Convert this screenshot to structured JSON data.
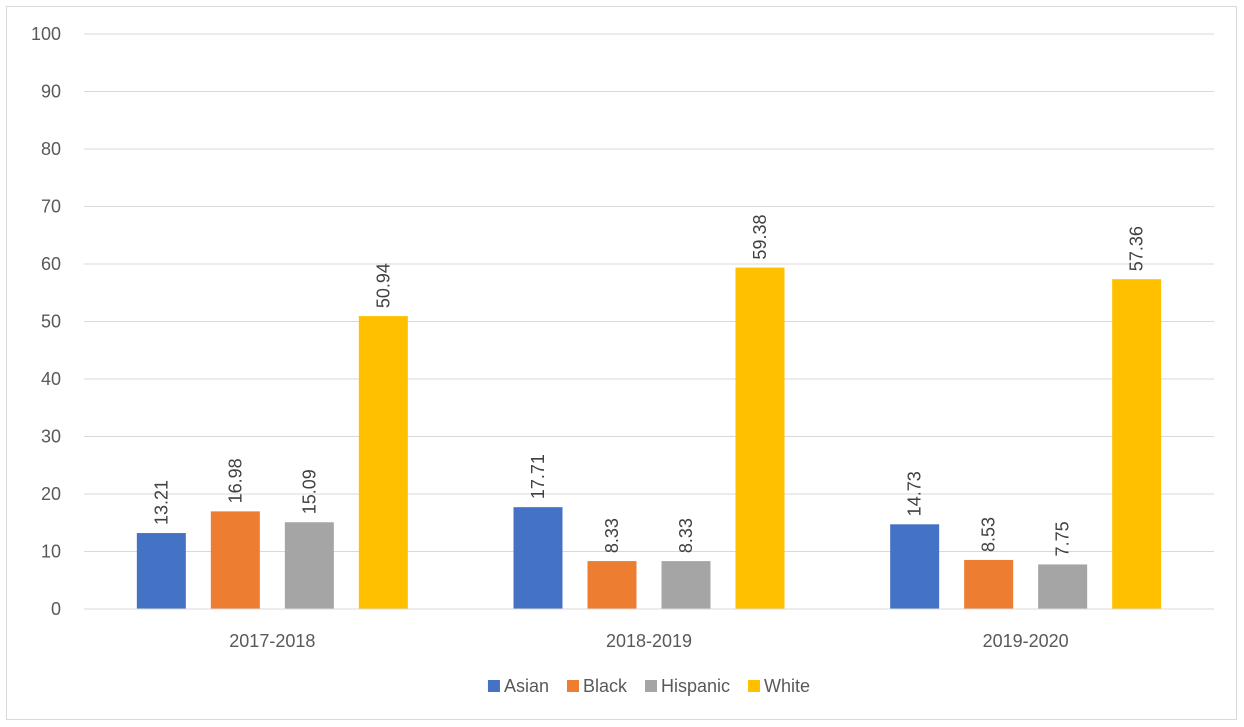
{
  "chart_data": {
    "type": "bar",
    "title": "",
    "xlabel": "",
    "ylabel": "",
    "categories": [
      "2017-2018",
      "2018-2019",
      "2019-2020"
    ],
    "ylim": [
      0,
      100
    ],
    "yticks": [
      0,
      10,
      20,
      30,
      40,
      50,
      60,
      70,
      80,
      90,
      100
    ],
    "grid": true,
    "legend_position": "bottom",
    "series": [
      {
        "name": "Asian",
        "color": "#4472c4",
        "values": [
          13.21,
          17.71,
          14.73
        ],
        "labels": [
          "13.21",
          "17.71",
          "14.73"
        ]
      },
      {
        "name": "Black",
        "color": "#ed7d31",
        "values": [
          16.98,
          8.33,
          8.53
        ],
        "labels": [
          "16.98",
          "8.33",
          "8.53"
        ]
      },
      {
        "name": "Hispanic",
        "color": "#a5a5a5",
        "values": [
          15.09,
          8.33,
          7.75
        ],
        "labels": [
          "15.09",
          "8.33",
          "7.75"
        ]
      },
      {
        "name": "White",
        "color": "#ffc000",
        "values": [
          50.94,
          59.38,
          57.36
        ],
        "labels": [
          "50.94",
          "59.38",
          "57.36"
        ]
      }
    ]
  }
}
